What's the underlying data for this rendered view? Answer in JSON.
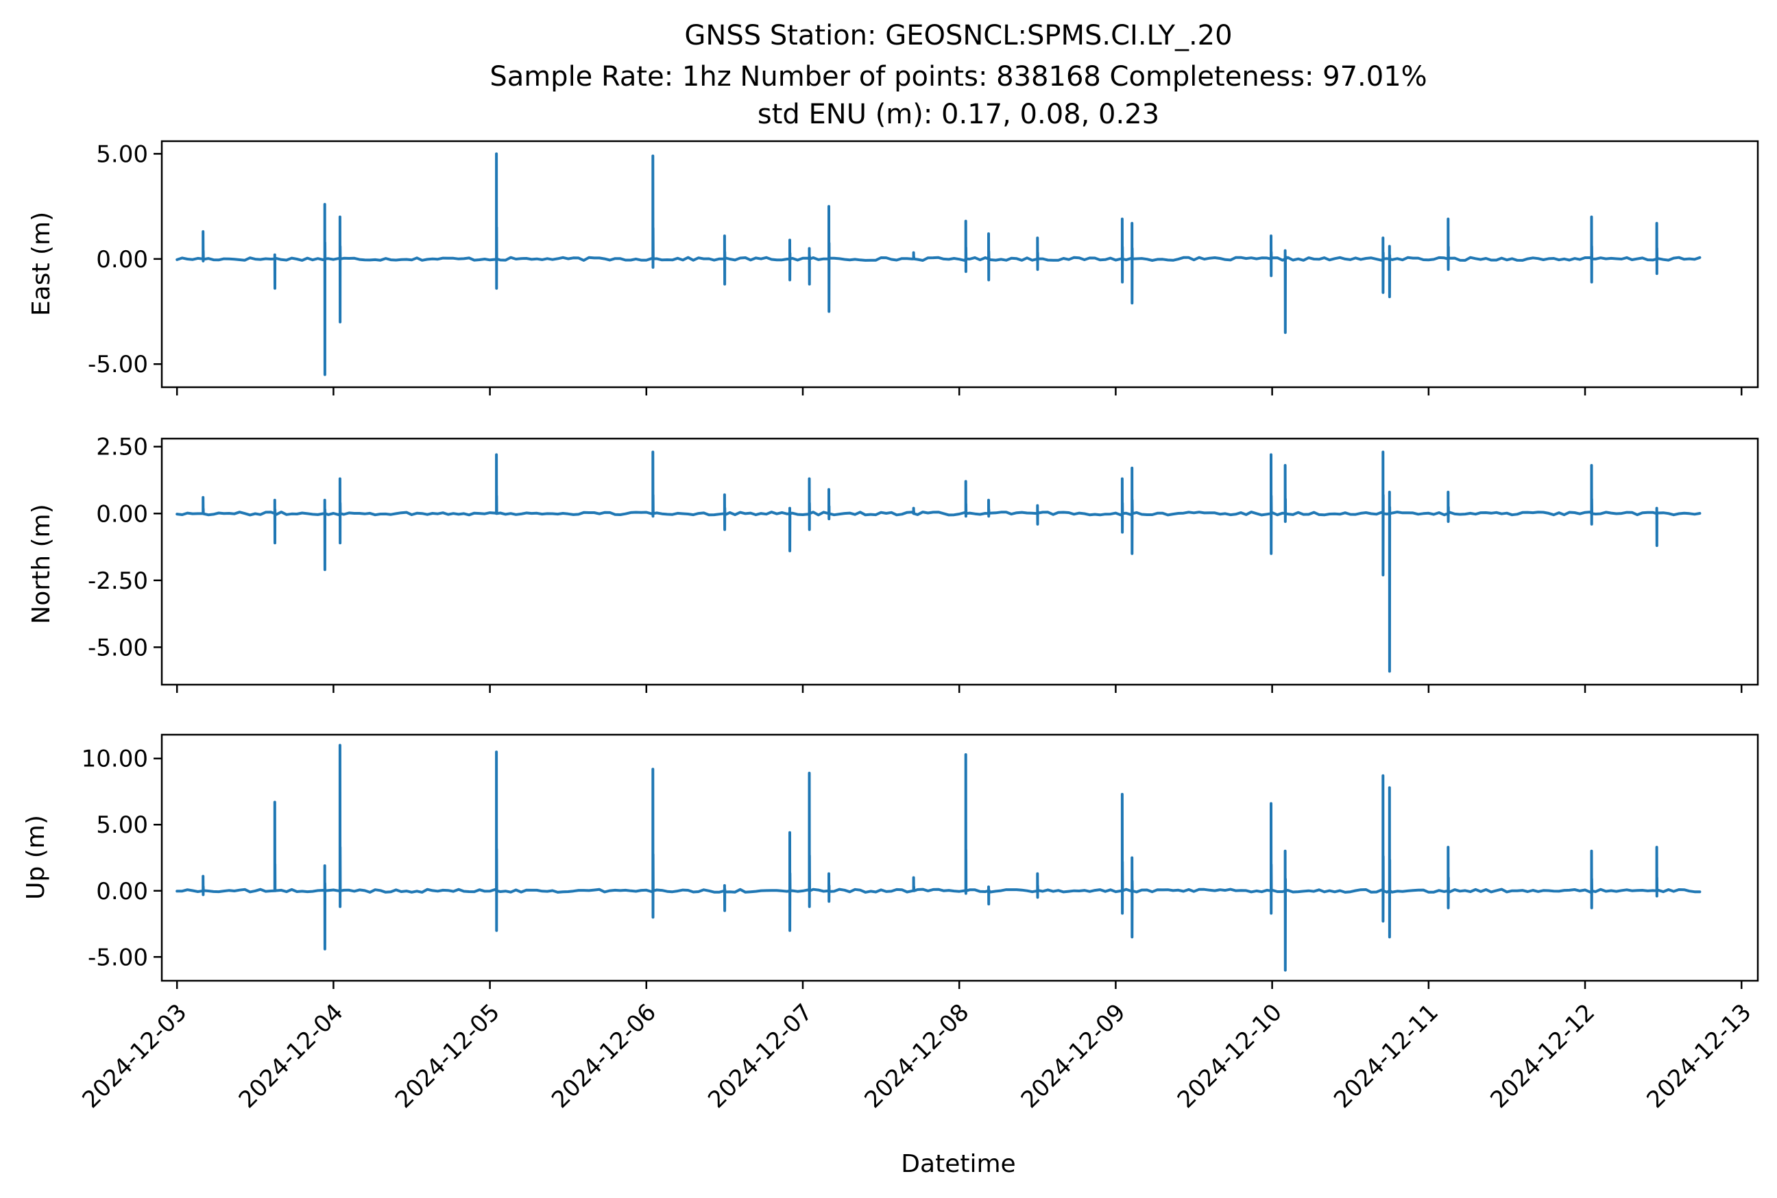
{
  "figure": {
    "title_lines": [
      "GNSS Station: GEOSNCL:SPMS.CI.LY_.20",
      "Sample Rate: 1hz   Number of points: 838168    Completeness:  97.01%",
      "std ENU (m):  0.17, 0.08, 0.23"
    ]
  },
  "chart_data": {
    "type": "line",
    "title": "GNSS Station: GEOSNCL:SPMS.CI.LY_.20",
    "subtitle": "Sample Rate: 1hz   Number of points: 838168    Completeness:  97.01%",
    "annotation": "std ENU (m):  0.17, 0.08, 0.23",
    "xlabel": "Datetime",
    "xlim": [
      "2024-12-02T21:40",
      "2024-12-13T02:30"
    ],
    "x_ticks": [
      "2024-12-03",
      "2024-12-04",
      "2024-12-05",
      "2024-12-06",
      "2024-12-07",
      "2024-12-08",
      "2024-12-09",
      "2024-12-10",
      "2024-12-11",
      "2024-12-12",
      "2024-12-13"
    ],
    "series_color": "#1f77b4",
    "grid": false,
    "data_start": "2024-12-03T00:00",
    "data_end": "2024-12-12T18:00",
    "panels": [
      {
        "id": "east",
        "ylabel": "East (m)",
        "ylim": [
          -6.1,
          5.6
        ],
        "y_ticks": [
          5.0,
          0.0,
          -5.0
        ],
        "y_tick_labels": [
          "5.00",
          "0.00",
          "-5.00"
        ],
        "spikes": [
          [
            "2024-12-03T04:00",
            1.3,
            -0.1
          ],
          [
            "2024-12-03T15:00",
            0.2,
            -1.4
          ],
          [
            "2024-12-03T22:40",
            2.6,
            -5.5
          ],
          [
            "2024-12-04T01:00",
            2.0,
            -3.0
          ],
          [
            "2024-12-05T01:00",
            5.0,
            -1.4
          ],
          [
            "2024-12-06T01:00",
            4.9,
            -0.4
          ],
          [
            "2024-12-06T12:00",
            1.1,
            -1.2
          ],
          [
            "2024-12-06T22:00",
            0.9,
            -1.0
          ],
          [
            "2024-12-07T01:00",
            0.5,
            -1.2
          ],
          [
            "2024-12-07T04:00",
            2.5,
            -2.5
          ],
          [
            "2024-12-07T17:00",
            0.3,
            0.0
          ],
          [
            "2024-12-08T01:00",
            1.8,
            -0.6
          ],
          [
            "2024-12-08T04:30",
            1.2,
            -1.0
          ],
          [
            "2024-12-08T12:00",
            1.0,
            -0.5
          ],
          [
            "2024-12-09T01:00",
            1.9,
            -1.1
          ],
          [
            "2024-12-09T02:30",
            1.7,
            -2.1
          ],
          [
            "2024-12-09T23:50",
            1.1,
            -0.8
          ],
          [
            "2024-12-10T02:00",
            0.4,
            -3.5
          ],
          [
            "2024-12-10T17:00",
            1.0,
            -1.6
          ],
          [
            "2024-12-10T18:00",
            0.6,
            -1.8
          ],
          [
            "2024-12-11T03:00",
            1.9,
            -0.5
          ],
          [
            "2024-12-12T01:00",
            2.0,
            -1.1
          ],
          [
            "2024-12-12T11:00",
            1.7,
            -0.7
          ]
        ]
      },
      {
        "id": "north",
        "ylabel": "North (m)",
        "ylim": [
          -6.4,
          2.8
        ],
        "y_ticks": [
          2.5,
          0.0,
          -2.5,
          -5.0
        ],
        "y_tick_labels": [
          "2.50",
          "0.00",
          "-2.50",
          "-5.00"
        ],
        "spikes": [
          [
            "2024-12-03T04:00",
            0.6,
            0.0
          ],
          [
            "2024-12-03T15:00",
            0.5,
            -1.1
          ],
          [
            "2024-12-03T22:40",
            0.5,
            -2.1
          ],
          [
            "2024-12-04T01:00",
            1.3,
            -1.1
          ],
          [
            "2024-12-05T01:00",
            2.2,
            0.0
          ],
          [
            "2024-12-06T01:00",
            2.3,
            -0.1
          ],
          [
            "2024-12-06T12:00",
            0.7,
            -0.6
          ],
          [
            "2024-12-06T22:00",
            0.2,
            -1.4
          ],
          [
            "2024-12-07T01:00",
            1.3,
            -0.6
          ],
          [
            "2024-12-07T04:00",
            0.9,
            -0.2
          ],
          [
            "2024-12-07T17:00",
            0.2,
            0.0
          ],
          [
            "2024-12-08T01:00",
            1.2,
            -0.1
          ],
          [
            "2024-12-08T04:30",
            0.5,
            -0.1
          ],
          [
            "2024-12-08T12:00",
            0.3,
            -0.4
          ],
          [
            "2024-12-09T01:00",
            1.3,
            -0.7
          ],
          [
            "2024-12-09T02:30",
            1.7,
            -1.5
          ],
          [
            "2024-12-09T23:50",
            2.2,
            -1.5
          ],
          [
            "2024-12-10T02:00",
            1.8,
            -0.3
          ],
          [
            "2024-12-10T17:00",
            2.3,
            -2.3
          ],
          [
            "2024-12-10T18:00",
            0.8,
            -5.9
          ],
          [
            "2024-12-11T03:00",
            0.8,
            -0.3
          ],
          [
            "2024-12-12T01:00",
            1.8,
            -0.4
          ],
          [
            "2024-12-12T11:00",
            0.2,
            -1.2
          ]
        ]
      },
      {
        "id": "up",
        "ylabel": "Up (m)",
        "ylim": [
          -6.8,
          11.8
        ],
        "y_ticks": [
          10.0,
          5.0,
          0.0,
          -5.0
        ],
        "y_tick_labels": [
          "10.00",
          "5.00",
          "0.00",
          "-5.00"
        ],
        "spikes": [
          [
            "2024-12-03T04:00",
            1.1,
            -0.3
          ],
          [
            "2024-12-03T15:00",
            6.7,
            0.0
          ],
          [
            "2024-12-03T22:40",
            1.9,
            -4.4
          ],
          [
            "2024-12-04T01:00",
            11.0,
            -1.2
          ],
          [
            "2024-12-05T01:00",
            10.5,
            -3.0
          ],
          [
            "2024-12-06T01:00",
            9.2,
            -2.0
          ],
          [
            "2024-12-06T12:00",
            0.4,
            -1.5
          ],
          [
            "2024-12-06T22:00",
            4.4,
            -3.0
          ],
          [
            "2024-12-07T01:00",
            8.9,
            -1.2
          ],
          [
            "2024-12-07T04:00",
            1.3,
            -0.8
          ],
          [
            "2024-12-07T17:00",
            1.0,
            0.0
          ],
          [
            "2024-12-08T01:00",
            10.3,
            -0.2
          ],
          [
            "2024-12-08T04:30",
            0.3,
            -1.0
          ],
          [
            "2024-12-08T12:00",
            1.3,
            -0.5
          ],
          [
            "2024-12-09T01:00",
            7.3,
            -1.7
          ],
          [
            "2024-12-09T02:30",
            2.5,
            -3.5
          ],
          [
            "2024-12-09T23:50",
            6.6,
            -1.7
          ],
          [
            "2024-12-10T02:00",
            3.0,
            -6.0
          ],
          [
            "2024-12-10T17:00",
            8.7,
            -2.3
          ],
          [
            "2024-12-10T18:00",
            7.8,
            -3.5
          ],
          [
            "2024-12-11T03:00",
            3.3,
            -1.3
          ],
          [
            "2024-12-12T01:00",
            3.0,
            -1.3
          ],
          [
            "2024-12-12T11:00",
            3.3,
            -0.4
          ]
        ]
      }
    ]
  }
}
